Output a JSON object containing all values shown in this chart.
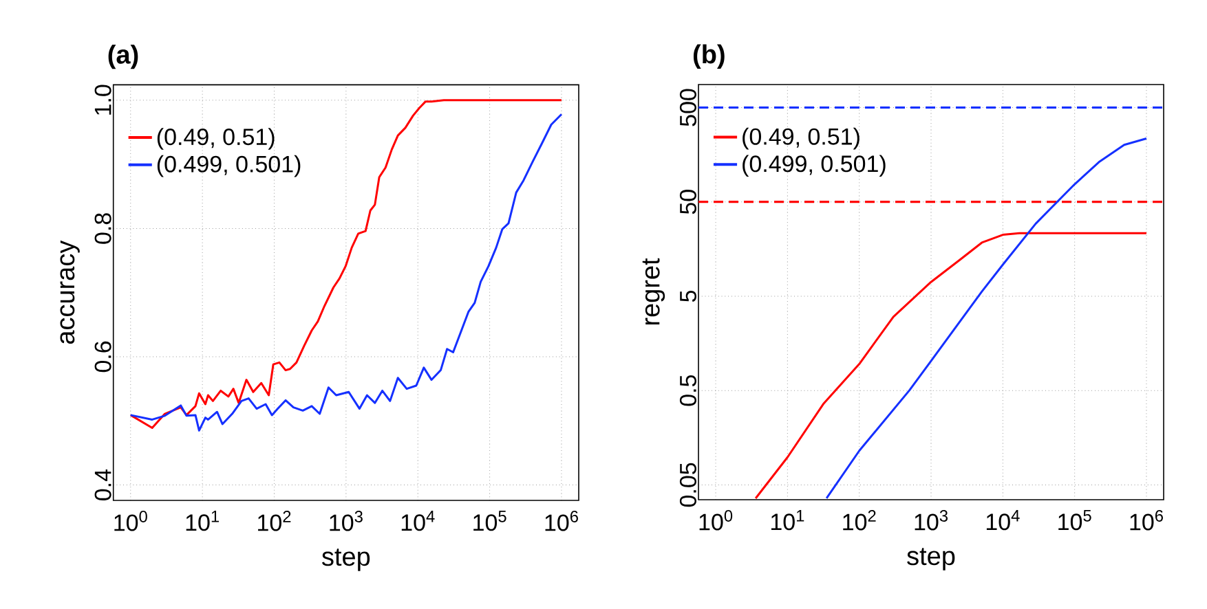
{
  "chart_data": [
    {
      "type": "line",
      "title": "(a)",
      "xlabel": "step",
      "ylabel": "accuracy",
      "log": "x",
      "grid": true,
      "legend": "top left",
      "xlim": [
        0.5754,
        1737801
      ],
      "ylim": [
        0.376,
        1.024
      ],
      "xticks": [
        {
          "value": 1,
          "label": "10$^{0}$"
        },
        {
          "value": 10,
          "label": "10$^{1}$"
        },
        {
          "value": 100,
          "label": "10$^{2}$"
        },
        {
          "value": 1000,
          "label": "10$^{3}$"
        },
        {
          "value": 10000,
          "label": "10$^{4}$"
        },
        {
          "value": 100000,
          "label": "10$^{5}$"
        },
        {
          "value": 1000000,
          "label": "10$^{6}$"
        }
      ],
      "yticks": [
        0.4,
        0.6,
        0.8,
        {
          "value": 1,
          "label": "1.0"
        }
      ],
      "series": [
        {
          "name": "(0.49, 0.51)",
          "color": "#ff0000",
          "x": [
            1,
            2,
            3,
            5,
            6,
            8,
            9,
            11,
            12,
            14,
            18,
            23,
            27,
            32,
            41,
            51,
            66,
            84,
            97,
            118,
            144,
            166,
            204,
            261,
            333,
            405,
            500,
            667,
            810,
            985,
            1200,
            1480,
            1870,
            2180,
            2520,
            2900,
            3550,
            4330,
            5270,
            6700,
            8590,
            10500,
            12800,
            15500,
            23000,
            1000000
          ],
          "values": [
            0.509,
            0.489,
            0.511,
            0.521,
            0.509,
            0.523,
            0.543,
            0.526,
            0.54,
            0.531,
            0.547,
            0.538,
            0.55,
            0.528,
            0.564,
            0.545,
            0.559,
            0.54,
            0.588,
            0.591,
            0.579,
            0.581,
            0.591,
            0.617,
            0.641,
            0.655,
            0.679,
            0.708,
            0.722,
            0.741,
            0.77,
            0.792,
            0.796,
            0.828,
            0.837,
            0.88,
            0.895,
            0.923,
            0.945,
            0.957,
            0.976,
            0.988,
            0.998,
            0.998,
            1.0,
            1.0
          ]
        },
        {
          "name": "(0.499, 0.501)",
          "color": "#1530ff",
          "x": [
            1,
            2,
            3,
            5,
            6,
            8,
            9,
            11,
            12,
            16,
            19,
            26,
            35,
            44,
            57,
            76,
            93,
            112,
            144,
            185,
            250,
            333,
            430,
            570,
            730,
            1090,
            1540,
            1960,
            2520,
            3200,
            4100,
            5270,
            7000,
            9500,
            12100,
            15500,
            20800,
            25500,
            31000,
            39500,
            50600,
            61800,
            75000,
            96000,
            123000,
            150000,
            183000,
            234000,
            296000,
            396000,
            536000,
            720000,
            1000000
          ],
          "values": [
            0.509,
            0.502,
            0.508,
            0.524,
            0.508,
            0.509,
            0.485,
            0.505,
            0.502,
            0.514,
            0.495,
            0.511,
            0.531,
            0.535,
            0.519,
            0.526,
            0.509,
            0.519,
            0.532,
            0.521,
            0.516,
            0.523,
            0.511,
            0.552,
            0.54,
            0.545,
            0.519,
            0.54,
            0.528,
            0.547,
            0.531,
            0.567,
            0.55,
            0.555,
            0.583,
            0.564,
            0.579,
            0.612,
            0.607,
            0.638,
            0.67,
            0.684,
            0.717,
            0.741,
            0.77,
            0.799,
            0.808,
            0.856,
            0.875,
            0.904,
            0.933,
            0.962,
            0.978
          ]
        }
      ]
    },
    {
      "type": "line",
      "title": "(b)",
      "xlabel": "step",
      "ylabel": "regret",
      "log": "xy",
      "grid": true,
      "legend": "top left",
      "xlim": [
        0.5754,
        1737801
      ],
      "ylim": [
        0.0348,
        877
      ],
      "xticks": [
        {
          "value": 1,
          "label": "10$^{0}$"
        },
        {
          "value": 10,
          "label": "10$^{1}$"
        },
        {
          "value": 100,
          "label": "10$^{2}$"
        },
        {
          "value": 1000,
          "label": "10$^{3}$"
        },
        {
          "value": 10000,
          "label": "10$^{4}$"
        },
        {
          "value": 100000,
          "label": "10$^{5}$"
        },
        {
          "value": 1000000,
          "label": "10$^{6}$"
        }
      ],
      "yticks": [
        0.05,
        0.5,
        5,
        50,
        500
      ],
      "ref_lines": [
        {
          "axis": "y",
          "value": 500,
          "color": "#1530ff",
          "line_style": "dashed"
        },
        {
          "axis": "y",
          "value": 50,
          "color": "#ff0000",
          "line_style": "dashed"
        }
      ],
      "series": [
        {
          "name": "(0.49, 0.51)",
          "color": "#ff0000",
          "x": [
            3.6,
            10,
            32,
            100,
            299,
            1000,
            2500,
            5100,
            10000,
            17000,
            1000000
          ],
          "values": [
            0.036,
            0.098,
            0.365,
            0.955,
            3.03,
            7.08,
            12.1,
            18.5,
            22.4,
            23.3,
            23.3
          ]
        },
        {
          "name": "(0.499, 0.501)",
          "color": "#1530ff",
          "x": [
            35,
            100,
            497,
            1000,
            5100,
            10000,
            28700,
            100000,
            218000,
            490000,
            1000000
          ],
          "values": [
            0.036,
            0.115,
            0.5,
            1.03,
            5.6,
            10.8,
            29.4,
            76.9,
            132,
            201,
            235
          ]
        }
      ]
    }
  ]
}
